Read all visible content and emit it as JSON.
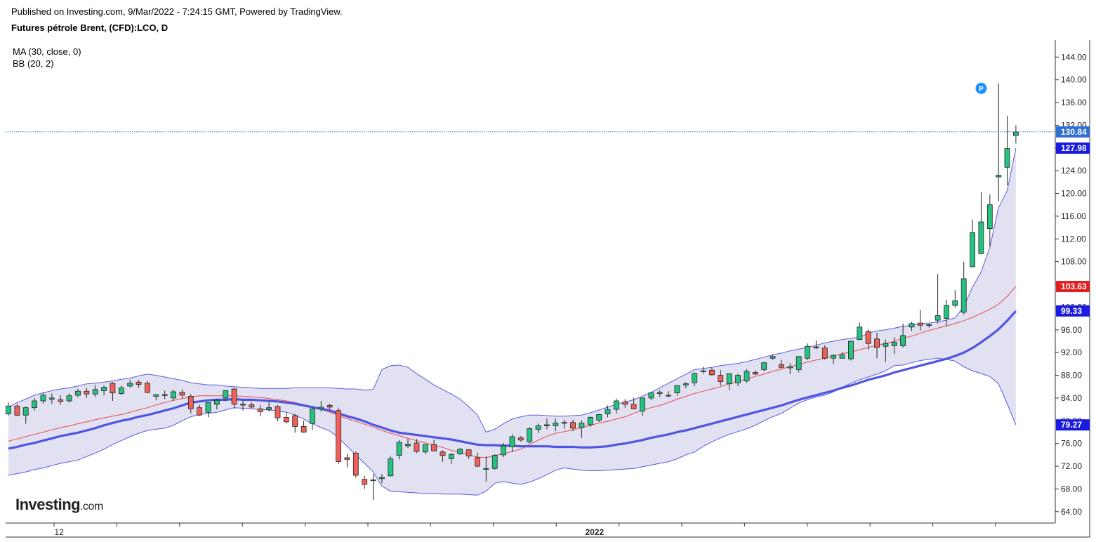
{
  "header": {
    "published": "Published on Investing.com, 9/Mar/2022 - 7:24:15 GMT, Powered by TradingView.",
    "symbol": "Futures pétrole Brent, (CFD):LCO, D"
  },
  "indicators": {
    "ma": "MA (30, close, 0)",
    "bb": "BB (20, 2)"
  },
  "logo": {
    "main": "Investing",
    "suffix": ".com"
  },
  "colors": {
    "up": "#26c281",
    "down": "#f0605a",
    "ma30": "#4f55e0",
    "bb_mid": "#e84a4a",
    "bb_band": "#5a5ae0",
    "bb_fill": "#dcdcf0",
    "last_price": "#2f6fd0"
  },
  "chart_data": {
    "type": "candlestick",
    "y_ticks": [
      "64.00",
      "68.00",
      "72.00",
      "76.00",
      "80.00",
      "84.00",
      "88.00",
      "92.00",
      "96.00",
      "100.00",
      "104.00",
      "108.00",
      "112.00",
      "116.00",
      "120.00",
      "124.00",
      "128.00",
      "132.00",
      "136.00",
      "140.00",
      "144.00"
    ],
    "ylim": [
      62,
      147
    ],
    "x_labels": [
      {
        "label": "12",
        "bar": 6
      },
      {
        "label": "2022",
        "bar": 67
      }
    ],
    "price_labels": [
      {
        "text": "130.84",
        "value": 130.84,
        "color": "#2f6fd0",
        "role": "last"
      },
      {
        "text": "127.98",
        "value": 127.98,
        "color": "#1a1ae0",
        "role": "bb_upper"
      },
      {
        "text": "103.63",
        "value": 103.63,
        "color": "#e02020",
        "role": "bb_mid"
      },
      {
        "text": "99.33",
        "value": 99.33,
        "color": "#1a1ae0",
        "role": "ma30"
      },
      {
        "text": "79.27",
        "value": 79.27,
        "color": "#1a1ae0",
        "role": "bb_lower"
      }
    ],
    "last_price": 130.84,
    "annotation": {
      "text": "P",
      "bar": 112,
      "value": 138.5
    },
    "ohlc": [
      [
        81.2,
        83.2,
        80.9,
        82.6
      ],
      [
        82.6,
        83.0,
        80.8,
        81.0
      ],
      [
        81.0,
        82.5,
        79.5,
        82.3
      ],
      [
        82.3,
        84.0,
        81.8,
        83.5
      ],
      [
        83.5,
        85.0,
        83.0,
        84.5
      ],
      [
        83.8,
        84.8,
        83.0,
        84.0
      ],
      [
        83.7,
        84.5,
        82.8,
        83.4
      ],
      [
        83.5,
        84.8,
        83.2,
        84.4
      ],
      [
        84.5,
        85.6,
        84.1,
        85.2
      ],
      [
        85.2,
        85.8,
        84.0,
        84.7
      ],
      [
        84.7,
        86.3,
        84.2,
        85.5
      ],
      [
        85.3,
        86.2,
        84.5,
        85.9
      ],
      [
        86.6,
        86.8,
        83.5,
        84.9
      ],
      [
        84.8,
        86.2,
        84.5,
        85.8
      ],
      [
        86.1,
        87.2,
        85.8,
        86.6
      ],
      [
        86.8,
        87.2,
        85.8,
        86.4
      ],
      [
        86.6,
        87.0,
        84.8,
        85.0
      ],
      [
        84.3,
        84.7,
        83.6,
        84.6
      ],
      [
        84.5,
        85.3,
        83.8,
        84.6
      ],
      [
        84.0,
        85.5,
        83.5,
        85.1
      ],
      [
        85.0,
        85.5,
        84.0,
        84.5
      ],
      [
        84.3,
        84.7,
        81.3,
        82.1
      ],
      [
        82.3,
        82.8,
        80.8,
        81.0
      ],
      [
        81.5,
        83.2,
        80.6,
        83.2
      ],
      [
        82.9,
        83.8,
        82.0,
        83.6
      ],
      [
        84.0,
        85.4,
        83.4,
        85.3
      ],
      [
        85.6,
        85.8,
        82.1,
        82.9
      ],
      [
        82.9,
        83.5,
        81.8,
        82.8
      ],
      [
        82.8,
        83.3,
        82.2,
        82.4
      ],
      [
        82.1,
        82.8,
        80.8,
        81.6
      ],
      [
        82.0,
        83.3,
        81.6,
        82.3
      ],
      [
        82.5,
        82.8,
        79.9,
        80.5
      ],
      [
        80.6,
        81.4,
        79.5,
        79.8
      ],
      [
        80.9,
        81.2,
        77.9,
        79.0
      ],
      [
        79.0,
        80.0,
        77.9,
        78.0
      ],
      [
        79.5,
        82.4,
        78.4,
        82.1
      ],
      [
        82.1,
        83.5,
        81.6,
        82.4
      ],
      [
        82.7,
        83.0,
        82.0,
        82.4
      ],
      [
        81.8,
        82.3,
        72.4,
        72.8
      ],
      [
        73.5,
        74.2,
        71.8,
        73.2
      ],
      [
        74.3,
        74.6,
        70.0,
        70.4
      ],
      [
        69.7,
        70.3,
        68.0,
        68.8
      ],
      [
        69.6,
        70.6,
        66.0,
        69.6
      ],
      [
        69.8,
        70.6,
        69.0,
        70.0
      ],
      [
        70.3,
        73.8,
        70.2,
        73.3
      ],
      [
        73.9,
        76.6,
        73.2,
        76.2
      ],
      [
        75.6,
        76.8,
        75.2,
        75.9
      ],
      [
        76.1,
        76.8,
        74.3,
        74.6
      ],
      [
        74.5,
        75.5,
        74.1,
        75.8
      ],
      [
        75.8,
        76.7,
        74.6,
        74.7
      ],
      [
        74.5,
        74.8,
        72.8,
        73.9
      ],
      [
        73.3,
        74.3,
        72.4,
        74.1
      ],
      [
        74.2,
        75.2,
        74.0,
        75.0
      ],
      [
        74.9,
        75.0,
        73.3,
        73.8
      ],
      [
        73.5,
        74.4,
        71.8,
        72.0
      ],
      [
        71.5,
        73.7,
        69.3,
        71.6
      ],
      [
        71.6,
        74.1,
        71.4,
        73.9
      ],
      [
        74.0,
        76.1,
        73.6,
        75.6
      ],
      [
        75.4,
        77.6,
        74.5,
        77.2
      ],
      [
        77.0,
        77.3,
        76.3,
        76.6
      ],
      [
        76.3,
        78.9,
        76.0,
        78.6
      ],
      [
        78.5,
        79.5,
        77.8,
        79.1
      ],
      [
        79.1,
        80.4,
        78.5,
        79.3
      ],
      [
        79.1,
        80.4,
        78.2,
        79.6
      ],
      [
        79.6,
        80.2,
        78.6,
        79.7
      ],
      [
        79.7,
        80.2,
        78.2,
        78.7
      ],
      [
        78.8,
        80.1,
        77.0,
        79.6
      ],
      [
        79.3,
        80.8,
        78.9,
        80.6
      ],
      [
        80.1,
        81.2,
        79.8,
        81.1
      ],
      [
        81.2,
        82.7,
        80.6,
        82.0
      ],
      [
        82.0,
        83.9,
        81.3,
        83.5
      ],
      [
        83.3,
        83.8,
        82.3,
        82.9
      ],
      [
        82.9,
        84.1,
        82.0,
        82.1
      ],
      [
        81.7,
        83.6,
        80.9,
        84.0
      ],
      [
        84.0,
        85.0,
        83.6,
        84.9
      ],
      [
        84.8,
        85.4,
        84.2,
        85.0
      ],
      [
        84.5,
        85.2,
        84.1,
        84.4
      ],
      [
        84.9,
        86.2,
        84.4,
        86.2
      ],
      [
        86.3,
        86.8,
        85.7,
        86.5
      ],
      [
        86.7,
        88.5,
        86.1,
        88.3
      ],
      [
        88.7,
        89.5,
        88.3,
        88.8
      ],
      [
        88.9,
        89.3,
        87.9,
        88.1
      ],
      [
        88.0,
        88.9,
        86.2,
        86.9
      ],
      [
        86.5,
        88.1,
        85.4,
        88.3
      ],
      [
        86.7,
        88.3,
        86.1,
        88.0
      ],
      [
        87.0,
        89.1,
        86.7,
        88.7
      ],
      [
        88.5,
        88.9,
        88.0,
        88.2
      ],
      [
        89.0,
        90.3,
        88.7,
        90.2
      ],
      [
        91.0,
        91.6,
        90.7,
        91.3
      ],
      [
        89.9,
        90.7,
        89.2,
        89.4
      ],
      [
        89.3,
        90.1,
        88.2,
        89.5
      ],
      [
        89.0,
        91.4,
        88.5,
        91.3
      ],
      [
        91.0,
        93.6,
        90.7,
        93.1
      ],
      [
        93.0,
        94.1,
        92.6,
        92.8
      ],
      [
        92.8,
        93.3,
        90.8,
        91.0
      ],
      [
        91.0,
        91.7,
        90.0,
        91.5
      ],
      [
        91.0,
        92.1,
        91.0,
        91.6
      ],
      [
        90.9,
        94.1,
        90.6,
        94.0
      ],
      [
        94.3,
        97.3,
        94.2,
        96.5
      ],
      [
        95.7,
        96.1,
        92.5,
        93.6
      ],
      [
        94.4,
        95.5,
        91.0,
        92.9
      ],
      [
        93.1,
        94.3,
        90.3,
        93.6
      ],
      [
        93.2,
        94.7,
        91.7,
        93.8
      ],
      [
        93.2,
        97.1,
        92.9,
        95.0
      ],
      [
        96.5,
        97.4,
        95.8,
        97.1
      ],
      [
        97.2,
        99.5,
        95.9,
        96.8
      ],
      [
        96.9,
        97.1,
        96.4,
        96.9
      ],
      [
        97.7,
        105.8,
        97.1,
        98.5
      ],
      [
        98.0,
        101.3,
        96.7,
        100.3
      ],
      [
        100.3,
        103.0,
        99.9,
        101.1
      ],
      [
        99.1,
        108.0,
        98.7,
        105.0
      ],
      [
        107.1,
        115.4,
        107.0,
        113.1
      ],
      [
        109.4,
        120.2,
        109.3,
        115.0
      ],
      [
        113.8,
        119.8,
        110.7,
        118.0
      ],
      [
        122.9,
        139.4,
        118.7,
        123.2
      ],
      [
        124.6,
        133.7,
        121.4,
        127.9
      ],
      [
        130.2,
        132.0,
        128.8,
        130.8
      ]
    ],
    "ma30": [
      75.1,
      75.4,
      75.8,
      76.1,
      76.5,
      76.9,
      77.3,
      77.6,
      77.9,
      78.3,
      78.7,
      79.2,
      79.6,
      80.0,
      80.3,
      80.7,
      81.0,
      81.4,
      81.8,
      82.2,
      82.7,
      83.2,
      83.4,
      83.6,
      83.7,
      83.7,
      83.8,
      83.7,
      83.7,
      83.6,
      83.5,
      83.4,
      83.2,
      83.0,
      82.7,
      82.4,
      82.1,
      81.8,
      81.3,
      80.8,
      80.4,
      79.9,
      79.3,
      78.8,
      78.3,
      77.9,
      77.7,
      77.5,
      77.3,
      77.1,
      76.9,
      76.7,
      76.4,
      76.1,
      75.8,
      75.7,
      75.7,
      75.6,
      75.6,
      75.5,
      75.5,
      75.5,
      75.5,
      75.4,
      75.4,
      75.4,
      75.3,
      75.3,
      75.4,
      75.5,
      75.8,
      76.0,
      76.3,
      76.6,
      77.0,
      77.3,
      77.6,
      78.0,
      78.3,
      78.7,
      79.1,
      79.5,
      79.9,
      80.3,
      80.7,
      81.1,
      81.5,
      81.9,
      82.3,
      82.7,
      83.2,
      83.7,
      84.1,
      84.5,
      84.9,
      85.3,
      85.8,
      86.2,
      86.7,
      87.2,
      87.6,
      88.0,
      88.5,
      88.9,
      89.3,
      89.7,
      90.1,
      90.5,
      90.9,
      91.4,
      92.0,
      92.8,
      93.8,
      94.9,
      96.1,
      97.6,
      99.3
    ],
    "bb_mid": [
      76.4,
      76.8,
      77.2,
      77.6,
      78.0,
      78.4,
      78.8,
      79.1,
      79.5,
      79.8,
      80.2,
      80.5,
      80.8,
      81.1,
      81.5,
      81.9,
      82.3,
      82.8,
      83.2,
      83.6,
      83.9,
      84.2,
      84.4,
      84.4,
      84.4,
      84.4,
      84.4,
      84.3,
      84.2,
      84.1,
      83.9,
      83.7,
      83.5,
      83.2,
      82.8,
      82.4,
      82.0,
      81.5,
      80.9,
      80.4,
      79.9,
      79.4,
      78.9,
      78.3,
      77.8,
      77.4,
      76.9,
      76.5,
      76.1,
      75.7,
      75.3,
      74.8,
      74.4,
      74.0,
      73.6,
      73.5,
      73.9,
      74.2,
      74.6,
      75.0,
      75.8,
      76.6,
      77.3,
      77.8,
      78.1,
      78.4,
      78.8,
      79.2,
      79.6,
      79.9,
      80.3,
      80.7,
      81.3,
      81.9,
      82.3,
      82.7,
      83.2,
      83.8,
      84.3,
      84.8,
      85.2,
      85.6,
      86.0,
      86.5,
      86.9,
      87.4,
      87.8,
      88.2,
      88.7,
      89.1,
      89.5,
      89.9,
      90.3,
      90.7,
      91.0,
      91.4,
      91.8,
      92.1,
      92.5,
      92.9,
      93.3,
      93.6,
      94.0,
      94.5,
      94.9,
      95.4,
      95.9,
      96.3,
      96.7,
      97.1,
      97.6,
      98.2,
      98.9,
      99.6,
      100.5,
      101.9,
      103.63
    ],
    "bb_upper": [
      82.4,
      83.2,
      83.8,
      84.5,
      84.9,
      85.3,
      85.6,
      85.8,
      86.1,
      86.5,
      86.6,
      86.8,
      87.0,
      87.3,
      87.5,
      87.9,
      88.2,
      88.0,
      87.7,
      87.4,
      87.1,
      86.7,
      86.5,
      86.3,
      86.3,
      86.1,
      86.0,
      85.9,
      85.8,
      85.7,
      85.7,
      85.7,
      85.7,
      85.8,
      85.8,
      85.8,
      85.8,
      85.8,
      85.7,
      85.6,
      85.6,
      85.4,
      85.5,
      89.0,
      89.7,
      89.8,
      89.4,
      88.3,
      87.3,
      86.3,
      85.5,
      84.7,
      83.8,
      82.5,
      81.0,
      78.0,
      78.5,
      79.5,
      80.3,
      80.7,
      81.0,
      81.0,
      80.9,
      80.8,
      80.8,
      80.9,
      81.0,
      81.4,
      81.9,
      82.4,
      82.9,
      83.3,
      83.7,
      84.3,
      85.0,
      85.8,
      86.6,
      87.4,
      88.2,
      89.0,
      89.2,
      89.4,
      89.7,
      89.9,
      90.1,
      90.4,
      90.8,
      91.2,
      91.6,
      91.9,
      92.3,
      92.6,
      92.9,
      93.3,
      93.7,
      94.0,
      94.3,
      94.5,
      94.7,
      95.4,
      95.8,
      96.0,
      96.3,
      96.6,
      96.8,
      97.1,
      97.2,
      97.4,
      97.7,
      98.1,
      100.1,
      103.5,
      106.2,
      110.5,
      117.5,
      120.5,
      127.98
    ],
    "bb_lower": [
      70.4,
      70.7,
      71.0,
      71.4,
      71.7,
      72.1,
      72.5,
      72.8,
      73.1,
      73.7,
      74.3,
      75.0,
      75.8,
      76.5,
      77.2,
      77.8,
      78.3,
      78.5,
      78.7,
      79.2,
      80.0,
      80.7,
      81.1,
      81.3,
      81.5,
      81.9,
      82.3,
      82.2,
      82.1,
      82.0,
      81.9,
      81.7,
      81.5,
      81.0,
      80.3,
      79.5,
      78.8,
      78.2,
      77.0,
      75.5,
      74.0,
      72.5,
      71.0,
      68.5,
      67.6,
      67.5,
      67.4,
      67.3,
      67.2,
      67.2,
      67.1,
      67.1,
      67.1,
      67.0,
      66.9,
      67.6,
      69.0,
      69.3,
      69.0,
      68.8,
      69.2,
      69.8,
      70.5,
      71.3,
      71.7,
      71.5,
      71.3,
      71.2,
      71.2,
      71.3,
      71.4,
      71.5,
      71.6,
      71.9,
      72.2,
      72.5,
      72.8,
      73.3,
      74.0,
      74.5,
      75.5,
      76.3,
      77.0,
      77.6,
      78.1,
      78.6,
      79.2,
      80.0,
      80.7,
      81.3,
      82.2,
      83.1,
      83.7,
      84.2,
      84.5,
      85.1,
      85.9,
      86.6,
      87.2,
      87.7,
      88.2,
      88.8,
      89.7,
      89.8,
      90.2,
      90.6,
      90.8,
      91.0,
      90.8,
      90.5,
      89.5,
      88.8,
      88.3,
      87.8,
      86.5,
      83.0,
      79.27
    ]
  }
}
